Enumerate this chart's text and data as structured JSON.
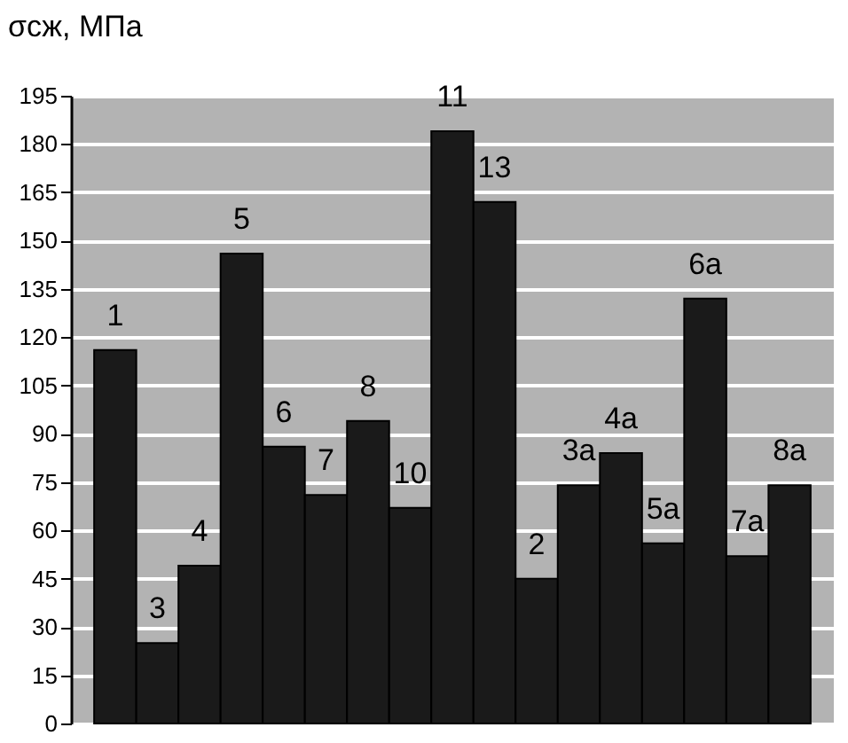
{
  "chart_data": {
    "type": "bar",
    "ylabel": "σсж, МПа",
    "categories": [
      "1",
      "3",
      "4",
      "5",
      "6",
      "7",
      "8",
      "10",
      "11",
      "13",
      "2",
      "3a",
      "4a",
      "5a",
      "6a",
      "7a",
      "8a"
    ],
    "values": [
      116,
      25,
      49,
      146,
      86,
      71,
      94,
      67,
      184,
      162,
      45,
      74,
      84,
      56,
      132,
      52,
      74
    ],
    "color": "#1a1a1a",
    "ylim": [
      0,
      195
    ],
    "yticks": [
      0,
      15,
      30,
      45,
      60,
      75,
      90,
      105,
      120,
      135,
      150,
      165,
      180,
      195
    ],
    "grid": "y",
    "tick_labels": "y"
  }
}
